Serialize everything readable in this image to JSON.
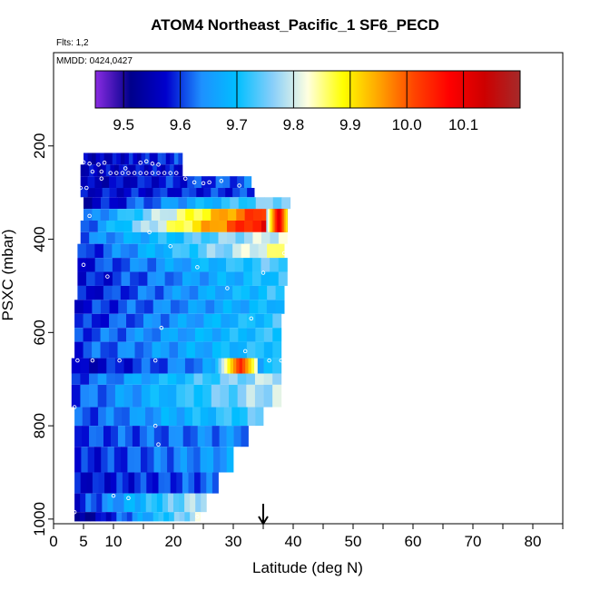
{
  "title": "ATOM4 Northeast_Pacific_1 SF6_PECD",
  "flights_label": "Flts: 1,2",
  "mmdd_label": "MMDD: 0424,0427",
  "chart_data": {
    "type": "heatmap",
    "title": "ATOM4 Northeast_Pacific_1 SF6_PECD",
    "xlabel": "Latitude (deg N)",
    "ylabel": "PSXC (mbar)",
    "xlim": [
      0,
      85
    ],
    "ylim": [
      1010,
      0
    ],
    "x_ticks": [
      0,
      5,
      10,
      20,
      30,
      40,
      50,
      60,
      70,
      80
    ],
    "y_ticks": [
      200,
      400,
      600,
      800,
      1000
    ],
    "colorbar": {
      "range": [
        9.45,
        10.2
      ],
      "ticks": [
        9.5,
        9.6,
        9.7,
        9.8,
        9.9,
        10.0,
        10.1
      ],
      "tick_labels": [
        "9.5",
        "9.6",
        "9.7",
        "9.8",
        "9.9",
        "10.0",
        "10.1"
      ],
      "colors": [
        "#8a2be2",
        "#00008b",
        "#0000cd",
        "#1e90ff",
        "#00bfff",
        "#87cefa",
        "#ffffe0",
        "#ffff00",
        "#ffa500",
        "#ff4500",
        "#ff0000",
        "#cd0000",
        "#a52a2a"
      ]
    },
    "arrow_latitude": 35,
    "layers": [
      {
        "p_top": 215,
        "p_bot": 240,
        "lat_start": 5,
        "lat_end": 21.5,
        "v_start": 9.55,
        "v_end": 9.6
      },
      {
        "p_top": 240,
        "p_bot": 265,
        "lat_start": 4.5,
        "lat_end": 21.5,
        "v_start": 9.56,
        "v_end": 9.58
      },
      {
        "p_top": 265,
        "p_bot": 290,
        "lat_start": 4.5,
        "lat_end": 33,
        "v_start": 9.55,
        "v_end": 9.62
      },
      {
        "p_top": 290,
        "p_bot": 310,
        "lat_start": 4.5,
        "lat_end": 33.5,
        "v_start": 9.57,
        "v_end": 9.6
      },
      {
        "p_top": 310,
        "p_bot": 335,
        "lat_start": 5,
        "lat_end": 39.5,
        "v_start": 9.55,
        "v_end": 9.78
      },
      {
        "p_top": 335,
        "p_bot": 360,
        "lat_start": 5,
        "lat_end": 39,
        "v_start": 9.6,
        "v_end": 10.1
      },
      {
        "p_top": 360,
        "p_bot": 385,
        "lat_start": 4.5,
        "lat_end": 39,
        "v_start": 9.6,
        "v_end": 10.15
      },
      {
        "p_top": 385,
        "p_bot": 410,
        "lat_start": 4.5,
        "lat_end": 39,
        "v_start": 9.62,
        "v_end": 9.82
      },
      {
        "p_top": 410,
        "p_bot": 440,
        "lat_start": 4,
        "lat_end": 38.5,
        "v_start": 9.58,
        "v_end": 9.85
      },
      {
        "p_top": 440,
        "p_bot": 470,
        "lat_start": 4,
        "lat_end": 39,
        "v_start": 9.58,
        "v_end": 9.75
      },
      {
        "p_top": 470,
        "p_bot": 500,
        "lat_start": 4,
        "lat_end": 39,
        "v_start": 9.57,
        "v_end": 9.72
      },
      {
        "p_top": 500,
        "p_bot": 530,
        "lat_start": 4,
        "lat_end": 38.5,
        "v_start": 9.57,
        "v_end": 9.72
      },
      {
        "p_top": 530,
        "p_bot": 560,
        "lat_start": 3.5,
        "lat_end": 38.5,
        "v_start": 9.58,
        "v_end": 9.7
      },
      {
        "p_top": 560,
        "p_bot": 590,
        "lat_start": 3.5,
        "lat_end": 38,
        "v_start": 9.58,
        "v_end": 9.72
      },
      {
        "p_top": 590,
        "p_bot": 620,
        "lat_start": 3.5,
        "lat_end": 38,
        "v_start": 9.6,
        "v_end": 9.72
      },
      {
        "p_top": 620,
        "p_bot": 655,
        "lat_start": 3.5,
        "lat_end": 38,
        "v_start": 9.6,
        "v_end": 9.72
      },
      {
        "p_top": 655,
        "p_bot": 688,
        "lat_start": 3,
        "lat_end": 38,
        "v_start": 9.55,
        "v_end": 9.7
      },
      {
        "p_top": 688,
        "p_bot": 712,
        "lat_start": 3,
        "lat_end": 38,
        "v_start": 9.6,
        "v_end": 9.8
      },
      {
        "p_top": 712,
        "p_bot": 760,
        "lat_start": 3,
        "lat_end": 38,
        "v_start": 9.6,
        "v_end": 9.8
      },
      {
        "p_top": 760,
        "p_bot": 800,
        "lat_start": 3.5,
        "lat_end": 35,
        "v_start": 9.6,
        "v_end": 9.74
      },
      {
        "p_top": 800,
        "p_bot": 845,
        "lat_start": 3.5,
        "lat_end": 32.5,
        "v_start": 9.6,
        "v_end": 9.64
      },
      {
        "p_top": 845,
        "p_bot": 900,
        "lat_start": 3.5,
        "lat_end": 30,
        "v_start": 9.58,
        "v_end": 9.66
      },
      {
        "p_top": 900,
        "p_bot": 945,
        "lat_start": 3.5,
        "lat_end": 27.5,
        "v_start": 9.57,
        "v_end": 9.62
      },
      {
        "p_top": 945,
        "p_bot": 985,
        "lat_start": 3.5,
        "lat_end": 25.5,
        "v_start": 9.58,
        "v_end": 9.8
      },
      {
        "p_top": 985,
        "p_bot": 1005,
        "lat_start": 3.5,
        "lat_end": 24.5,
        "v_start": 9.5,
        "v_end": 9.8
      }
    ],
    "hot_spots": [
      {
        "p_top": 655,
        "p_bot": 688,
        "lat_start": 27,
        "lat_end": 34,
        "v": 10.05
      },
      {
        "p_top": 335,
        "p_bot": 385,
        "lat_start": 35.5,
        "lat_end": 39,
        "v": 10.12
      }
    ],
    "sample_points": [
      [
        5,
        235
      ],
      [
        6,
        238
      ],
      [
        7.5,
        240
      ],
      [
        8.5,
        236
      ],
      [
        14.5,
        236
      ],
      [
        15.5,
        233
      ],
      [
        16.5,
        238
      ],
      [
        17.5,
        240
      ],
      [
        6.5,
        255
      ],
      [
        8,
        255
      ],
      [
        9.5,
        258
      ],
      [
        10.5,
        258
      ],
      [
        11.5,
        258
      ],
      [
        12.5,
        258
      ],
      [
        13.5,
        258
      ],
      [
        14.5,
        258
      ],
      [
        15.5,
        258
      ],
      [
        16.5,
        258
      ],
      [
        17.5,
        258
      ],
      [
        18.5,
        258
      ],
      [
        19.5,
        258
      ],
      [
        20.5,
        258
      ],
      [
        8,
        270
      ],
      [
        12,
        248
      ],
      [
        22,
        270
      ],
      [
        23.5,
        278
      ],
      [
        25,
        280
      ],
      [
        26,
        278
      ],
      [
        28,
        275
      ],
      [
        31,
        285
      ],
      [
        4.5,
        290
      ],
      [
        5.5,
        290
      ],
      [
        6,
        350
      ],
      [
        16,
        385
      ],
      [
        19.5,
        415
      ],
      [
        24,
        460
      ],
      [
        5,
        455
      ],
      [
        9,
        480
      ],
      [
        35,
        472
      ],
      [
        38.5,
        430
      ],
      [
        18,
        590
      ],
      [
        29,
        505
      ],
      [
        33,
        570
      ],
      [
        4,
        660
      ],
      [
        6.5,
        660
      ],
      [
        11,
        660
      ],
      [
        17,
        660
      ],
      [
        32,
        640
      ],
      [
        36,
        660
      ],
      [
        38,
        660
      ],
      [
        3.5,
        760
      ],
      [
        17,
        800
      ],
      [
        17.5,
        840
      ],
      [
        10,
        950
      ],
      [
        12.5,
        955
      ],
      [
        3.5,
        985
      ],
      [
        24,
        995
      ]
    ]
  }
}
